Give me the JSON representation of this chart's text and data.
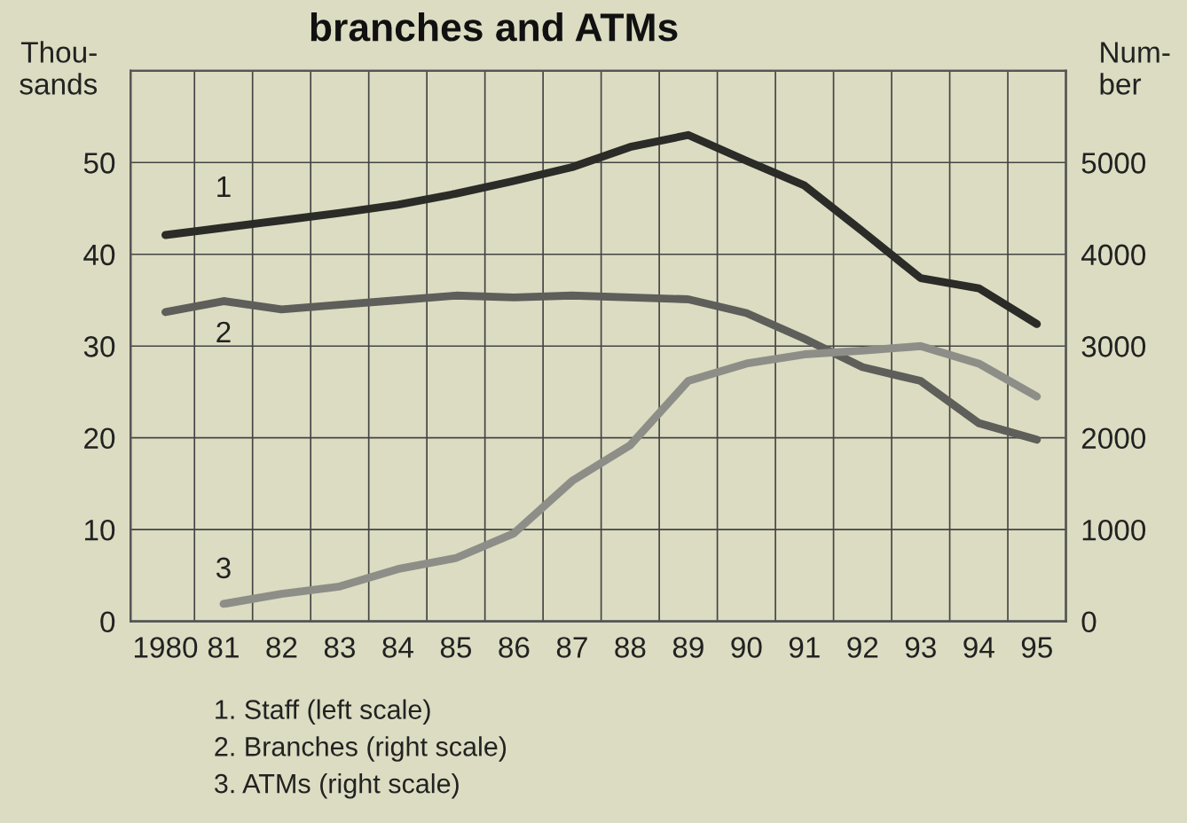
{
  "chart_data": {
    "type": "line",
    "title": "branches and ATMs",
    "ylabel": "Thou-\nsands",
    "y2label": "Num-\nber",
    "x": [
      1980,
      1981,
      1982,
      1983,
      1984,
      1985,
      1986,
      1987,
      1988,
      1989,
      1990,
      1991,
      1992,
      1993,
      1994,
      1995
    ],
    "series": [
      {
        "name": "1",
        "color": "#2b2b28",
        "values": [
          42.1,
          42.9,
          43.7,
          44.5,
          45.4,
          46.6,
          48,
          49.5,
          51.7,
          53,
          50.2,
          47.5,
          42.5,
          37.4,
          36.3,
          32.4
        ]
      },
      {
        "name": "2",
        "color": "#5e5e5a",
        "axis": "y2",
        "values": [
          3370,
          3490,
          3400,
          3450,
          3500,
          3550,
          3530,
          3550,
          3530,
          3510,
          3360,
          3080,
          2770,
          2620,
          2160,
          1980
        ]
      },
      {
        "name": "3",
        "color": "#8e8e88",
        "axis": "y2",
        "values": [
          null,
          190,
          300,
          380,
          570,
          690,
          960,
          1530,
          1920,
          2620,
          2810,
          2910,
          2950,
          3000,
          2810,
          2450
        ]
      }
    ],
    "xlim": [
      1979.4,
      1995.5
    ],
    "xticks": [
      {
        "value": 1980,
        "label": "1980"
      },
      {
        "value": 1981,
        "label": "81"
      },
      {
        "value": 1982,
        "label": "82"
      },
      {
        "value": 1983,
        "label": "83"
      },
      {
        "value": 1984,
        "label": "84"
      },
      {
        "value": 1985,
        "label": "85"
      },
      {
        "value": 1986,
        "label": "86"
      },
      {
        "value": 1987,
        "label": "87"
      },
      {
        "value": 1988,
        "label": "88"
      },
      {
        "value": 1989,
        "label": "89"
      },
      {
        "value": 1990,
        "label": "90"
      },
      {
        "value": 1991,
        "label": "91"
      },
      {
        "value": 1992,
        "label": "92"
      },
      {
        "value": 1993,
        "label": "93"
      },
      {
        "value": 1994,
        "label": "94"
      },
      {
        "value": 1995,
        "label": "95"
      },
      {
        "value": 1980.5,
        "label": null
      },
      {
        "value": 1981.5,
        "label": null
      },
      {
        "value": 1982.5,
        "label": null
      },
      {
        "value": 1983.5,
        "label": null
      },
      {
        "value": 1984.5,
        "label": null
      },
      {
        "value": 1985.5,
        "label": null
      },
      {
        "value": 1986.5,
        "label": null
      },
      {
        "value": 1987.5,
        "label": null
      },
      {
        "value": 1988.5,
        "label": null
      },
      {
        "value": 1989.5,
        "label": null
      },
      {
        "value": 1990.5,
        "label": null
      },
      {
        "value": 1991.5,
        "label": null
      },
      {
        "value": 1992.5,
        "label": null
      },
      {
        "value": 1993.5,
        "label": null
      },
      {
        "value": 1994.5,
        "label": null
      }
    ],
    "ylim": [
      0,
      60
    ],
    "yticks": [
      0,
      10,
      20,
      30,
      40,
      50
    ],
    "y2lim": [
      0,
      6000
    ],
    "y2ticks": [
      0,
      1000,
      2000,
      3000,
      4000,
      5000
    ],
    "grid": true,
    "marker": "none",
    "line_style": "solid",
    "annotations": [
      "1. Staff (left scale)",
      "2. Branches (right scale)",
      "3. ATMs (right scale)"
    ]
  }
}
